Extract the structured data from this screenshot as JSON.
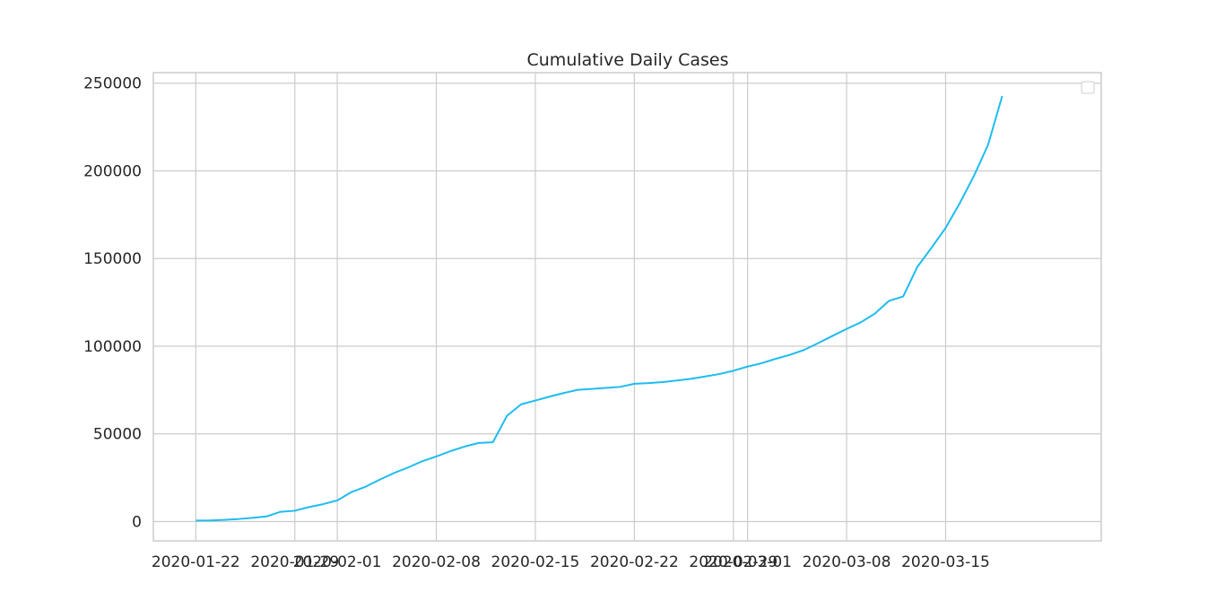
{
  "chart_data": {
    "type": "line",
    "title": "Cumulative Daily Cases",
    "xlabel": "",
    "ylabel": "",
    "xlim": [
      "2020-01-19",
      "2020-03-26"
    ],
    "ylim": [
      -11000,
      256000
    ],
    "x_ticks": [
      "2020-01-22",
      "2020-01-29",
      "2020-02-01",
      "2020-02-08",
      "2020-02-15",
      "2020-02-22",
      "2020-02-29",
      "2020-03-01",
      "2020-03-08",
      "2020-03-15"
    ],
    "y_ticks": [
      0,
      50000,
      100000,
      150000,
      200000,
      250000
    ],
    "y_tick_labels": [
      "0",
      "50000",
      "100000",
      "150000",
      "200000",
      "250000"
    ],
    "grid": true,
    "legend": {
      "placement": "top-right",
      "entries": []
    },
    "line_color": "#1ebcf0",
    "series": [
      {
        "x": [
          "2020-01-22",
          "2020-01-23",
          "2020-01-24",
          "2020-01-25",
          "2020-01-26",
          "2020-01-27",
          "2020-01-28",
          "2020-01-29",
          "2020-01-30",
          "2020-01-31",
          "2020-02-01",
          "2020-02-02",
          "2020-02-03",
          "2020-02-04",
          "2020-02-05",
          "2020-02-06",
          "2020-02-07",
          "2020-02-08",
          "2020-02-09",
          "2020-02-10",
          "2020-02-11",
          "2020-02-12",
          "2020-02-13",
          "2020-02-14",
          "2020-02-15",
          "2020-02-16",
          "2020-02-17",
          "2020-02-18",
          "2020-02-19",
          "2020-02-20",
          "2020-02-21",
          "2020-02-22",
          "2020-02-23",
          "2020-02-24",
          "2020-02-25",
          "2020-02-26",
          "2020-02-27",
          "2020-02-28",
          "2020-02-29",
          "2020-03-01",
          "2020-03-02",
          "2020-03-03",
          "2020-03-04",
          "2020-03-05",
          "2020-03-06",
          "2020-03-07",
          "2020-03-08",
          "2020-03-09",
          "2020-03-10",
          "2020-03-11",
          "2020-03-12",
          "2020-03-13",
          "2020-03-14",
          "2020-03-15",
          "2020-03-16",
          "2020-03-17",
          "2020-03-18",
          "2020-03-19",
          "2020-03-20",
          "2020-03-21"
        ],
        "values": [
          555,
          654,
          941,
          1434,
          2118,
          2927,
          5578,
          6166,
          8234,
          9927,
          12038,
          16787,
          19881,
          23892,
          27635,
          30817,
          34391,
          37120,
          40150,
          42762,
          44802,
          45221,
          60368,
          66885,
          69030,
          71224,
          73258,
          75136,
          75639,
          76197,
          76819,
          78572,
          78958,
          79561,
          80406,
          81388,
          82746,
          84112,
          86011,
          88369,
          90306,
          92840,
          95120,
          97886,
          101801,
          105847,
          109821,
          113590,
          118620,
          125875,
          128352,
          145205,
          156101,
          167454,
          181574,
          197102,
          214821,
          242713,
          null,
          null
        ]
      }
    ]
  }
}
